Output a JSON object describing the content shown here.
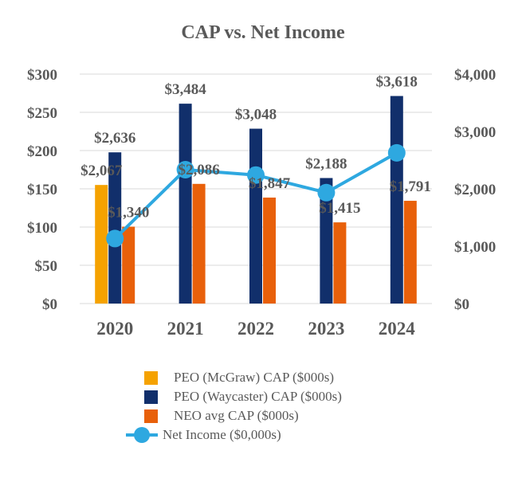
{
  "chart_data": {
    "type": "bar",
    "title": "CAP vs. Net Income",
    "categories": [
      "2020",
      "2021",
      "2022",
      "2023",
      "2024"
    ],
    "left_axis": {
      "min": 0,
      "max": 300,
      "step": 50,
      "ticks": [
        "$0",
        "$50",
        "$100",
        "$150",
        "$200",
        "$250",
        "$300"
      ]
    },
    "right_axis": {
      "min": 0,
      "max": 4000,
      "step": 1000,
      "ticks": [
        "$0",
        "$1,000",
        "$2,000",
        "$3,000",
        "$4,000"
      ]
    },
    "grid": true,
    "legend_position": "bottom",
    "series": [
      {
        "name": "PEO (McGraw) CAP ($000s)",
        "type": "bar",
        "axis": "right",
        "color": "#F5A200",
        "values": [
          2067,
          null,
          null,
          null,
          null
        ],
        "labels": [
          "$2,067",
          "",
          "",
          "",
          ""
        ]
      },
      {
        "name": "PEO (Waycaster) CAP ($000s)",
        "type": "bar",
        "axis": "right",
        "color": "#112F6B",
        "values": [
          2636,
          3484,
          3048,
          2188,
          3618
        ],
        "labels": [
          "$2,636",
          "$3,484",
          "$3,048",
          "$2,188",
          "$3,618"
        ]
      },
      {
        "name": "NEO avg CAP ($000s)",
        "type": "bar",
        "axis": "right",
        "color": "#E8600A",
        "values": [
          1340,
          2086,
          1847,
          1415,
          1791
        ],
        "labels": [
          "$1,340",
          "$2,086",
          "$1,847",
          "$1,415",
          "$1,791"
        ]
      },
      {
        "name": "Net Income ($0,000s)",
        "type": "line",
        "axis": "left",
        "color": "#2EA8E0",
        "values": [
          85,
          175,
          168,
          145,
          197
        ]
      }
    ]
  }
}
